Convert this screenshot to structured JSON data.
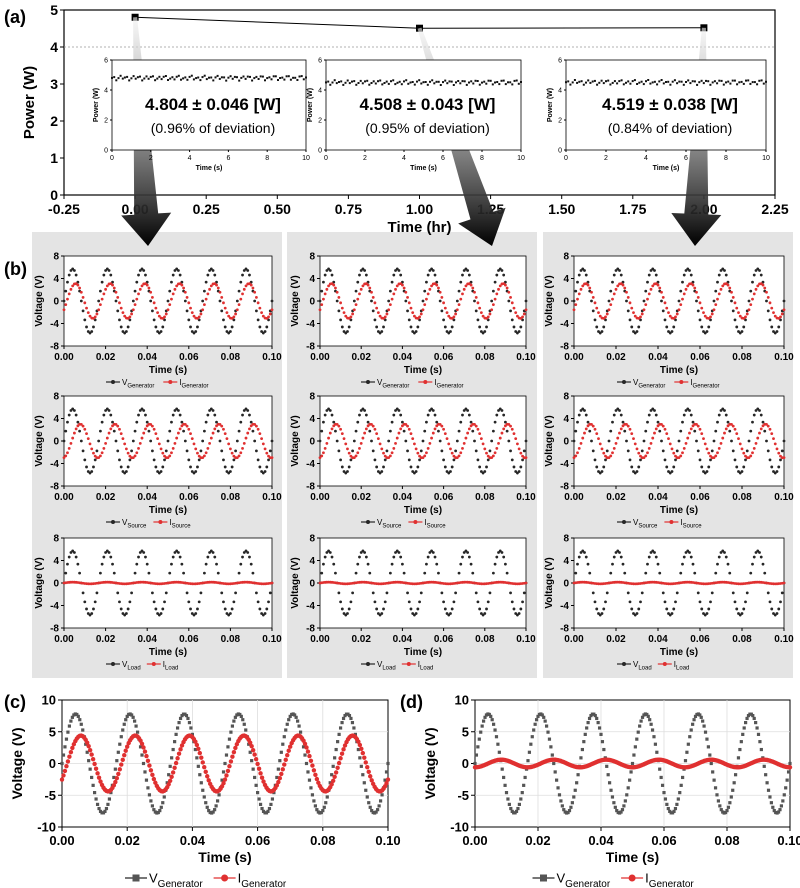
{
  "panel_labels": [
    "(a)",
    "(b)",
    "(c)",
    "(d)"
  ],
  "chart_data": [
    {
      "id": "a",
      "type": "line",
      "xlabel": "Time (hr)",
      "ylabel": "Power (W)",
      "xlim": [
        -0.25,
        2.25
      ],
      "ylim": [
        0,
        5
      ],
      "xticks": [
        "-0.25",
        "0.00",
        "0.25",
        "0.50",
        "0.75",
        "1.00",
        "1.25",
        "1.50",
        "1.75",
        "2.00",
        "2.25"
      ],
      "yticks": [
        "0",
        "1",
        "2",
        "3",
        "4",
        "5"
      ],
      "x": [
        0.0,
        1.0,
        2.0
      ],
      "y": [
        4.804,
        4.508,
        4.519
      ],
      "reference_line_y": 4.0,
      "annotations": [
        {
          "value": "4.804 ± 0.046 [W]",
          "deviation": "(0.96% of deviation)"
        },
        {
          "value": "4.508 ± 0.043 [W]",
          "deviation": "(0.95% of deviation)"
        },
        {
          "value": "4.519 ± 0.038 [W]",
          "deviation": "(0.84% of deviation)"
        }
      ],
      "insets": [
        {
          "type": "line",
          "xlabel": "Time (s)",
          "ylabel": "Power (W)",
          "xlim": [
            0,
            10
          ],
          "ylim": [
            0,
            6
          ],
          "xticks": [
            "0",
            "2",
            "4",
            "6",
            "8",
            "10"
          ],
          "yticks": [
            "0",
            "2",
            "4",
            "6"
          ],
          "level": 4.804
        },
        {
          "type": "line",
          "xlabel": "Time (s)",
          "ylabel": "Power (W)",
          "xlim": [
            0,
            10
          ],
          "ylim": [
            0,
            6
          ],
          "xticks": [
            "0",
            "2",
            "4",
            "6",
            "8",
            "10"
          ],
          "yticks": [
            "0",
            "2",
            "4",
            "6"
          ],
          "level": 4.508
        },
        {
          "type": "line",
          "xlabel": "Time (s)",
          "ylabel": "Power (W)",
          "xlim": [
            0,
            10
          ],
          "ylim": [
            0,
            6
          ],
          "xticks": [
            "0",
            "2",
            "4",
            "6",
            "8",
            "10"
          ],
          "yticks": [
            "0",
            "2",
            "4",
            "6"
          ],
          "level": 4.519
        }
      ]
    },
    {
      "id": "b",
      "type": "line",
      "xlabel": "Time (s)",
      "ylabel": "Voltage (V)",
      "xlim": [
        0,
        0.1
      ],
      "ylim": [
        -8,
        8
      ],
      "xticks": [
        "0.00",
        "0.02",
        "0.04",
        "0.06",
        "0.08",
        "0.10"
      ],
      "yticks": [
        "-8",
        "-4",
        "0",
        "4",
        "8"
      ],
      "frequency_hz": 60,
      "columns": [
        {
          "rows": [
            {
              "legend": [
                {
                  "base": "V",
                  "sub": "Generator"
                },
                {
                  "base": "I",
                  "sub": "Generator"
                }
              ],
              "v_amp": 5.7,
              "i_amp": 3.1,
              "i_phase_deg": 30
            },
            {
              "legend": [
                {
                  "base": "V",
                  "sub": "Source"
                },
                {
                  "base": "I",
                  "sub": "Source"
                }
              ],
              "v_amp": 5.7,
              "i_amp": 3.0,
              "i_phase_deg": 80
            },
            {
              "legend": [
                {
                  "base": "V",
                  "sub": "Load"
                },
                {
                  "base": "I",
                  "sub": "Load"
                }
              ],
              "v_amp": 5.7,
              "i_amp": 0.15,
              "i_phase_deg": 0
            }
          ]
        },
        {
          "rows": [
            {
              "legend": [
                {
                  "base": "V",
                  "sub": "Generator"
                },
                {
                  "base": "I",
                  "sub": "Generator"
                }
              ],
              "v_amp": 5.7,
              "i_amp": 3.1,
              "i_phase_deg": 30
            },
            {
              "legend": [
                {
                  "base": "V",
                  "sub": "Source"
                },
                {
                  "base": "I",
                  "sub": "Source"
                }
              ],
              "v_amp": 5.7,
              "i_amp": 3.0,
              "i_phase_deg": 80
            },
            {
              "legend": [
                {
                  "base": "V",
                  "sub": "Load"
                },
                {
                  "base": "I",
                  "sub": "Load"
                }
              ],
              "v_amp": 5.7,
              "i_amp": 0.15,
              "i_phase_deg": 0
            }
          ]
        },
        {
          "rows": [
            {
              "legend": [
                {
                  "base": "V",
                  "sub": "Generator"
                },
                {
                  "base": "I",
                  "sub": "Generator"
                }
              ],
              "v_amp": 5.7,
              "i_amp": 3.1,
              "i_phase_deg": 30
            },
            {
              "legend": [
                {
                  "base": "V",
                  "sub": "Source"
                },
                {
                  "base": "I",
                  "sub": "Source"
                }
              ],
              "v_amp": 5.7,
              "i_amp": 3.0,
              "i_phase_deg": 80
            },
            {
              "legend": [
                {
                  "base": "V",
                  "sub": "Load"
                },
                {
                  "base": "I",
                  "sub": "Load"
                }
              ],
              "v_amp": 5.7,
              "i_amp": 0.15,
              "i_phase_deg": 0
            }
          ]
        }
      ]
    },
    {
      "id": "c",
      "type": "line",
      "xlabel": "Time (s)",
      "ylabel": "Voltage (V)",
      "xlim": [
        0,
        0.1
      ],
      "ylim": [
        -10,
        10
      ],
      "xticks": [
        "0.00",
        "0.02",
        "0.04",
        "0.06",
        "0.08",
        "0.10"
      ],
      "yticks": [
        "-10",
        "-5",
        "0",
        "5",
        "10"
      ],
      "frequency_hz": 60,
      "legend": [
        {
          "base": "V",
          "sub": "Generator"
        },
        {
          "base": "I",
          "sub": "Generator"
        }
      ],
      "v_amp": 7.8,
      "i_amp": 4.4,
      "i_phase_deg": 35
    },
    {
      "id": "d",
      "type": "line",
      "xlabel": "Time (s)",
      "ylabel": "Voltage (V)",
      "xlim": [
        0,
        0.1
      ],
      "ylim": [
        -10,
        10
      ],
      "xticks": [
        "0.00",
        "0.02",
        "0.04",
        "0.06",
        "0.08",
        "0.10"
      ],
      "yticks": [
        "-10",
        "-5",
        "0",
        "5",
        "10"
      ],
      "frequency_hz": 60,
      "legend": [
        {
          "base": "V",
          "sub": "Generator"
        },
        {
          "base": "I",
          "sub": "Generator"
        }
      ],
      "v_amp": 7.8,
      "i_amp": 0.6,
      "i_phase_deg": 90
    }
  ],
  "colors": {
    "voltage": "#262626",
    "voltage_large": "#555555",
    "current": "#e03030",
    "panel_bg": "#e4e4e4",
    "axes": "#000000"
  }
}
